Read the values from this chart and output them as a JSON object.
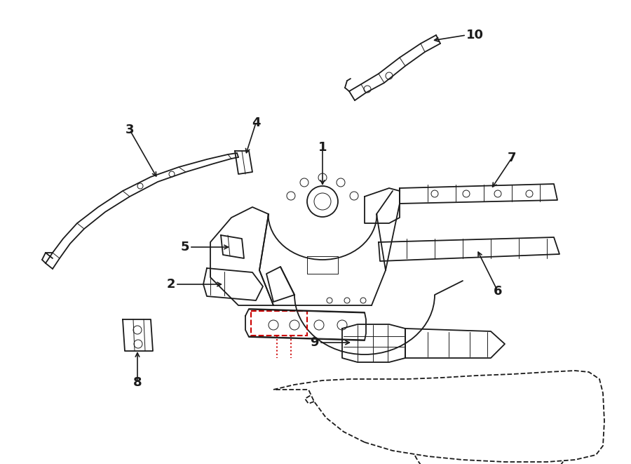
{
  "bg_color": "#ffffff",
  "line_color": "#1a1a1a",
  "red_color": "#cc0000",
  "lw": 1.3,
  "lw_thin": 0.7,
  "fig_width": 9.0,
  "fig_height": 6.61,
  "dpi": 100,
  "font_size": 13,
  "font_size_bold": 14
}
